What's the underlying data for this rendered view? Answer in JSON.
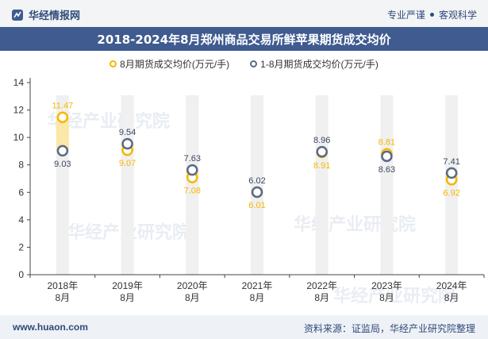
{
  "header": {
    "brand": "华经情报网",
    "slogan_left": "专业严谨",
    "slogan_right": "客观科学"
  },
  "footer": {
    "url": "www.huaon.com",
    "source": "资料来源：证监局，华经产业研究院整理"
  },
  "watermark": "华经产业研究院",
  "colors": {
    "series1": "#f5b800",
    "series2": "#5a6a85",
    "band": "#f0f0f0",
    "band_fill": "#fbe7a8",
    "title_bg": "#3f5b90"
  },
  "chart_data": {
    "type": "line",
    "title": "2018-2024年8月郑州商品交易所鲜苹果期货成交均价",
    "categories": [
      "2018年\n8月",
      "2019年\n8月",
      "2020年\n8月",
      "2021年\n8月",
      "2022年\n8月",
      "2023年\n8月",
      "2024年\n8月"
    ],
    "series": [
      {
        "name": "8月期货成交均价(万元/手)",
        "values": [
          11.47,
          9.07,
          7.08,
          6.01,
          8.91,
          8.81,
          6.92
        ]
      },
      {
        "name": "1-8月期货成交均价(万元/手)",
        "values": [
          9.03,
          9.54,
          7.63,
          6.02,
          8.96,
          8.63,
          7.41
        ]
      }
    ],
    "ylim": [
      0,
      14
    ],
    "yticks": [
      0,
      2,
      4,
      6,
      8,
      10,
      12,
      14
    ],
    "xlabel": "",
    "ylabel": ""
  }
}
